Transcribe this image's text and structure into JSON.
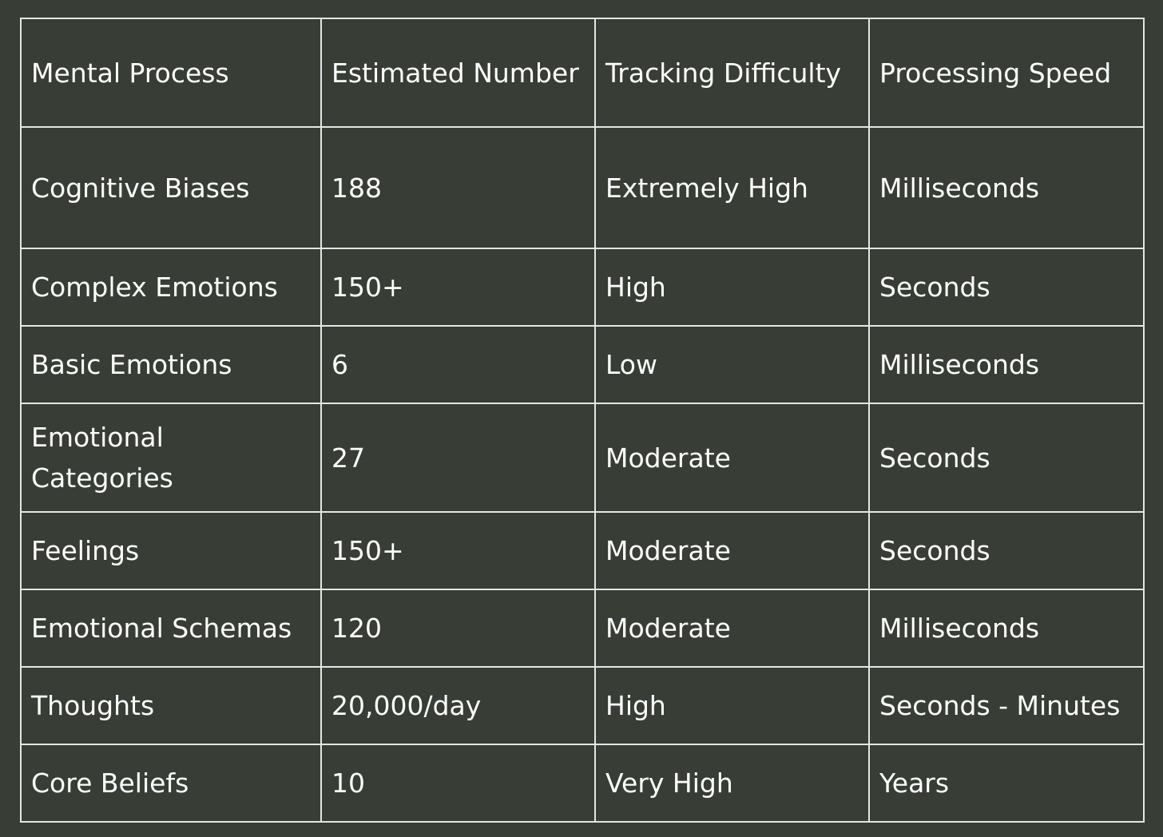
{
  "table": {
    "headers": [
      "Mental Process",
      "Estimated Number",
      "Tracking Difficulty",
      "Processing Speed"
    ],
    "rows": [
      [
        "Cognitive Biases",
        "188",
        "Extremely High",
        "Milliseconds"
      ],
      [
        "Complex Emotions",
        "150+",
        "High",
        "Seconds"
      ],
      [
        "Basic Emotions",
        "6",
        "Low",
        "Milliseconds"
      ],
      [
        "Emotional Categories",
        "27",
        "Moderate",
        "Seconds"
      ],
      [
        "Feelings",
        "150+",
        "Moderate",
        "Seconds"
      ],
      [
        "Emotional Schemas",
        "120",
        "Moderate",
        "Milliseconds"
      ],
      [
        "Thoughts",
        "20,000/day",
        "High",
        "Seconds - Minutes"
      ],
      [
        "Core Beliefs",
        "10",
        "Very High",
        "Years"
      ]
    ]
  },
  "colors": {
    "background": "#383d35",
    "border": "#e6e6e6",
    "text": "#ffffff"
  }
}
